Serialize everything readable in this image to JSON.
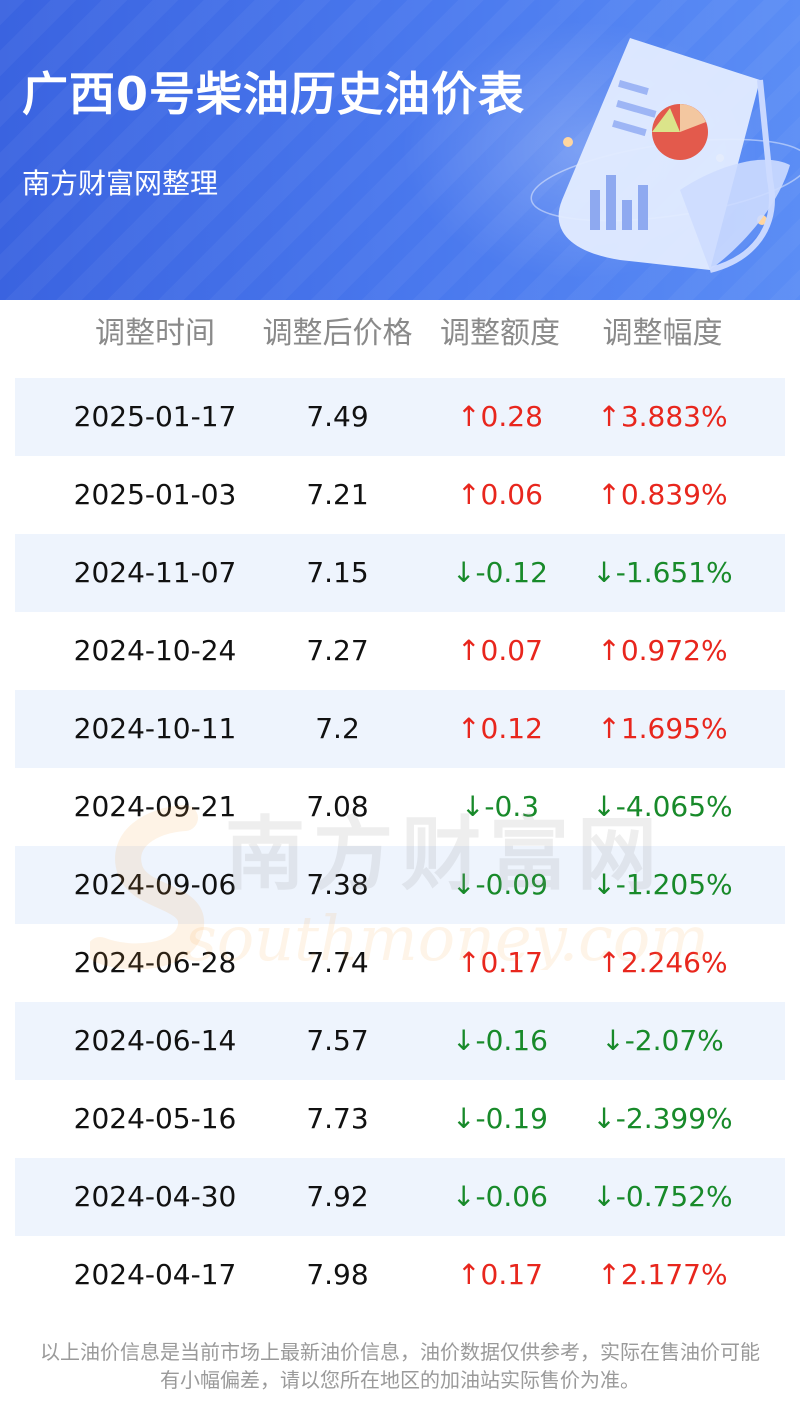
{
  "header": {
    "title": "广西0号柴油历史油价表",
    "subtitle": "南方财富网整理"
  },
  "columns": [
    "调整时间",
    "调整后价格",
    "调整额度",
    "调整幅度"
  ],
  "rows": [
    {
      "date": "2025-01-17",
      "price": "7.49",
      "change": "↑0.28",
      "pct": "↑3.883%",
      "dir": "up"
    },
    {
      "date": "2025-01-03",
      "price": "7.21",
      "change": "↑0.06",
      "pct": "↑0.839%",
      "dir": "up"
    },
    {
      "date": "2024-11-07",
      "price": "7.15",
      "change": "↓-0.12",
      "pct": "↓-1.651%",
      "dir": "down"
    },
    {
      "date": "2024-10-24",
      "price": "7.27",
      "change": "↑0.07",
      "pct": "↑0.972%",
      "dir": "up"
    },
    {
      "date": "2024-10-11",
      "price": "7.2",
      "change": "↑0.12",
      "pct": "↑1.695%",
      "dir": "up"
    },
    {
      "date": "2024-09-21",
      "price": "7.08",
      "change": "↓-0.3",
      "pct": "↓-4.065%",
      "dir": "down"
    },
    {
      "date": "2024-09-06",
      "price": "7.38",
      "change": "↓-0.09",
      "pct": "↓-1.205%",
      "dir": "down"
    },
    {
      "date": "2024-06-28",
      "price": "7.74",
      "change": "↑0.17",
      "pct": "↑2.246%",
      "dir": "up"
    },
    {
      "date": "2024-06-14",
      "price": "7.57",
      "change": "↓-0.16",
      "pct": "↓-2.07%",
      "dir": "down"
    },
    {
      "date": "2024-05-16",
      "price": "7.73",
      "change": "↓-0.19",
      "pct": "↓-2.399%",
      "dir": "down"
    },
    {
      "date": "2024-04-30",
      "price": "7.92",
      "change": "↓-0.06",
      "pct": "↓-0.752%",
      "dir": "down"
    },
    {
      "date": "2024-04-17",
      "price": "7.98",
      "change": "↑0.17",
      "pct": "↑2.177%",
      "dir": "up"
    }
  ],
  "watermark": {
    "cn": "南方财富网",
    "en": "southmoney.com"
  },
  "footer": {
    "line1": "以上油价信息是当前市场上最新油价信息，油价数据仅供参考，实际在售油价可能",
    "line2": "有小幅偏差，请以您所在地区的加油站实际售价为准。"
  },
  "colors": {
    "header_blue": "#4a79ee",
    "up": "#e8261d",
    "down": "#188a2a",
    "row_shade": "#eef4fd"
  }
}
